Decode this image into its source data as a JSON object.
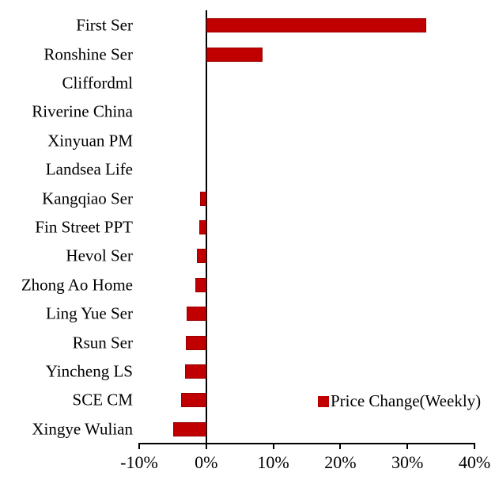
{
  "chart_data": {
    "type": "bar",
    "orientation": "horizontal",
    "title": "",
    "xlabel": "",
    "ylabel": "",
    "unit": "percent",
    "series_name": "Price Change(Weekly)",
    "categories": [
      "First Ser",
      "Ronshine Ser",
      "Cliffordml",
      "Riverine China",
      "Xinyuan PM",
      "Landsea Life",
      "Kangqiao Ser",
      "Fin Street PPT",
      "Hevol Ser",
      "Zhong Ao Home",
      "Ling Yue Ser",
      "Rsun Ser",
      "Yincheng LS",
      "SCE CM",
      "Xingye Wulian"
    ],
    "values": [
      32.8,
      8.4,
      0,
      0,
      0,
      0,
      -0.9,
      -1.0,
      -1.4,
      -1.6,
      -2.9,
      -3.0,
      -3.2,
      -3.8,
      -4.9
    ],
    "x_tick_labels": [
      "-10%",
      "0%",
      "10%",
      "20%",
      "30%",
      "40%"
    ],
    "x_tick_values": [
      -10,
      0,
      10,
      20,
      30,
      40
    ],
    "xlim": [
      -10,
      40
    ],
    "grid": "off",
    "legend_position": "inside-lower-right",
    "colors": {
      "bar_fill": "#C00000",
      "bar_border": "#9A0000",
      "axis": "#000000",
      "text": "#000000",
      "background": "#FFFFFF"
    }
  }
}
